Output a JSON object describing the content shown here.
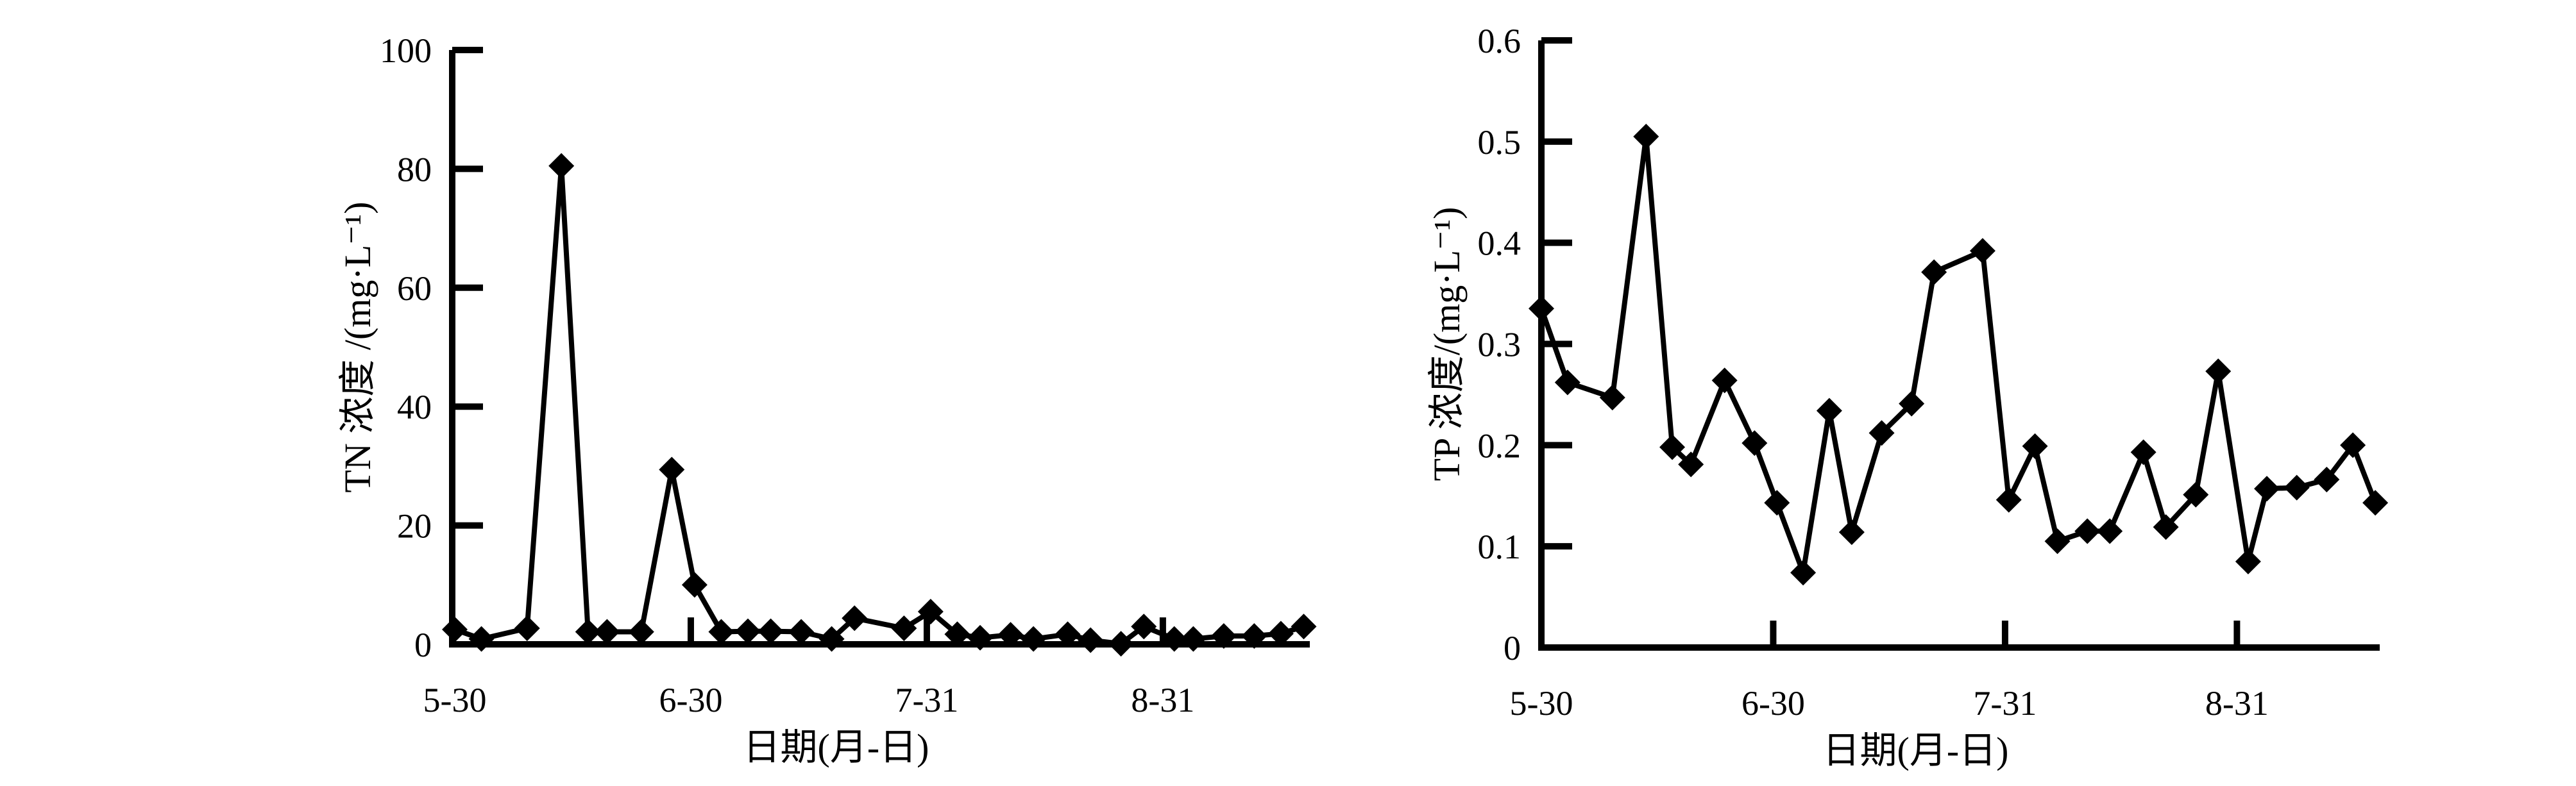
{
  "page": {
    "background_color": "#ffffff",
    "ink_color": "#000000"
  },
  "chart_data": [
    {
      "type": "line",
      "id": "tn",
      "title": "",
      "ylabel": "TN 浓度 /(mg·L⁻¹)",
      "xlabel": "日期(月-日)",
      "legend": [],
      "grid": false,
      "marker": "diamond",
      "line_color": "#000000",
      "ylim": [
        0,
        100
      ],
      "y_ticks": [
        0,
        20,
        40,
        60,
        80,
        100
      ],
      "y_tick_labels": [
        "0",
        "20",
        "40",
        "60",
        "80",
        "100"
      ],
      "x_tick_days": [
        0,
        31,
        62,
        93
      ],
      "x_tick_labels": [
        "5-30",
        "6-30",
        "7-31",
        "8-31"
      ],
      "x_axis_range_days": [
        0,
        113
      ],
      "x_days": [
        0,
        3.5,
        9.5,
        14,
        17.5,
        20,
        24.5,
        28.5,
        31.5,
        35,
        38.5,
        41.5,
        45.5,
        49.5,
        52.5,
        59,
        62.5,
        66,
        69,
        73,
        76,
        80.5,
        83.5,
        87.5,
        90.5,
        94.5,
        97,
        101,
        105,
        108.5,
        111.5
      ],
      "values": [
        2.5,
        0.9,
        2.7,
        80.5,
        2.1,
        2.1,
        2.1,
        29.4,
        10.0,
        2.1,
        2.2,
        2.2,
        2.1,
        0.9,
        4.4,
        2.7,
        5.5,
        1.7,
        1.1,
        1.6,
        0.9,
        1.7,
        0.7,
        0.1,
        3.0,
        0.9,
        0.9,
        1.4,
        1.4,
        1.8,
        3.0
      ]
    },
    {
      "type": "line",
      "id": "tp",
      "title": "",
      "ylabel": "TP 浓度/(mg·L⁻¹)",
      "xlabel": "日期(月-日)",
      "legend": [],
      "grid": false,
      "marker": "diamond",
      "line_color": "#000000",
      "ylim": [
        0,
        0.6
      ],
      "y_ticks": [
        0,
        0.1,
        0.2,
        0.3,
        0.4,
        0.5,
        0.6
      ],
      "y_tick_labels": [
        "0",
        "0.1",
        "0.2",
        "0.3",
        "0.4",
        "0.5",
        "0.6"
      ],
      "x_tick_days": [
        0,
        31,
        62,
        93
      ],
      "x_tick_labels": [
        "5-30",
        "6-30",
        "7-31",
        "8-31"
      ],
      "x_axis_range_days": [
        0,
        113
      ],
      "x_days": [
        0,
        3.5,
        9.5,
        14,
        17.5,
        20,
        24.5,
        28.5,
        31.5,
        35,
        38.5,
        41.5,
        45.5,
        49.5,
        52.5,
        59,
        62.5,
        66,
        69,
        73,
        76,
        80.5,
        83.5,
        87.5,
        90.5,
        94.5,
        97,
        101,
        105,
        108.5,
        111.5
      ],
      "values": [
        0.335,
        0.262,
        0.247,
        0.505,
        0.198,
        0.181,
        0.264,
        0.202,
        0.143,
        0.074,
        0.234,
        0.114,
        0.212,
        0.241,
        0.371,
        0.392,
        0.146,
        0.199,
        0.105,
        0.115,
        0.115,
        0.193,
        0.119,
        0.151,
        0.273,
        0.085,
        0.157,
        0.158,
        0.166,
        0.2,
        0.143
      ]
    }
  ]
}
